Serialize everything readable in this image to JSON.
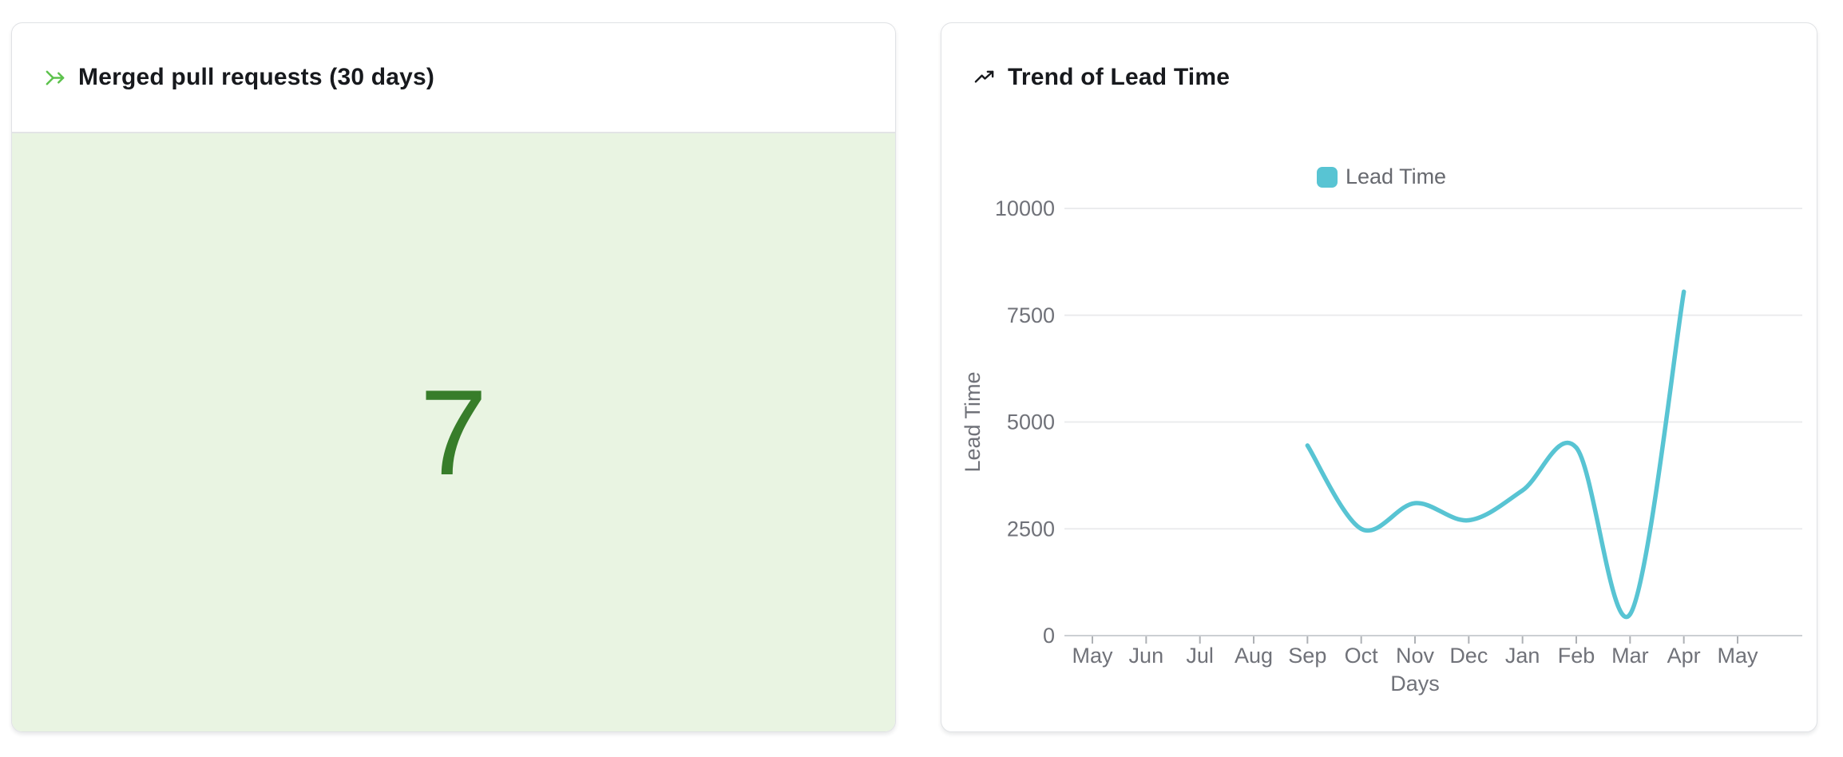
{
  "cards": {
    "merged_prs": {
      "title": "Merged pull requests (30 days)",
      "value": "7",
      "icon": "git-merge-arrow-icon",
      "icon_color": "#5dc24d",
      "value_color": "#377d2a",
      "body_background": "#e9f4e2"
    },
    "lead_time_trend": {
      "title": "Trend of Lead Time",
      "icon": "trending-up-icon",
      "icon_color": "#17191d"
    }
  },
  "chart_data": {
    "type": "line",
    "title": "Trend of Lead Time",
    "categories": [
      "May",
      "Jun",
      "Jul",
      "Aug",
      "Sep",
      "Oct",
      "Nov",
      "Dec",
      "Jan",
      "Feb",
      "Mar",
      "Apr",
      "May"
    ],
    "series": [
      {
        "name": "Lead Time",
        "color": "#58c4d3",
        "values": [
          null,
          null,
          null,
          null,
          4450,
          2500,
          3100,
          2700,
          3400,
          4400,
          500,
          8050,
          null
        ]
      }
    ],
    "xlabel": "Days",
    "ylabel": "Lead Time",
    "ylim": [
      0,
      10000
    ],
    "yticks": [
      0,
      2500,
      5000,
      7500,
      10000
    ],
    "legend": {
      "label": "Lead Time",
      "position": "top-center"
    },
    "grid": true,
    "smooth": true,
    "axis_text_color": "#707279",
    "grid_color": "#ebecee",
    "axis_line_color": "#cccfd3"
  }
}
